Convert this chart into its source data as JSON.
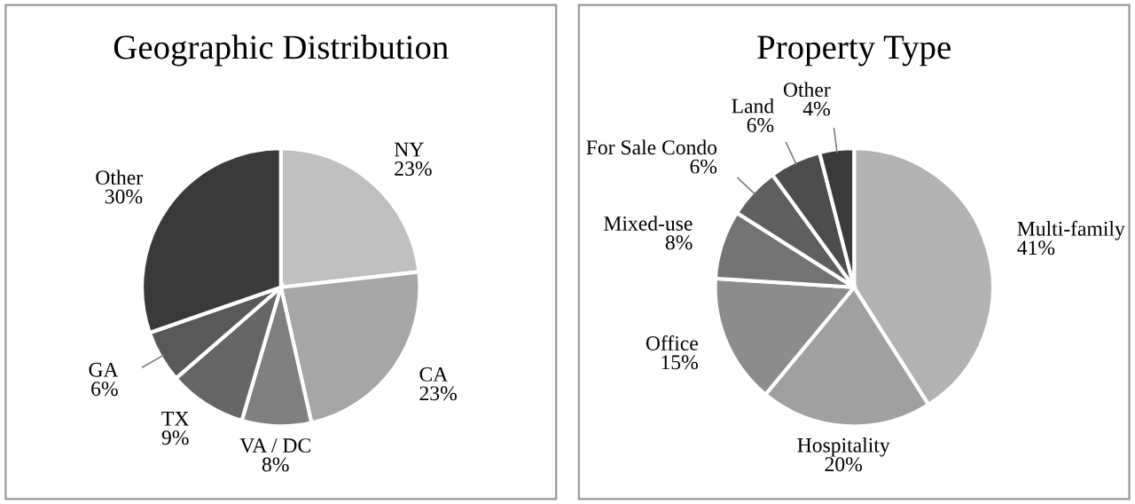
{
  "chart_data": [
    {
      "type": "pie",
      "title": "Geographic Distribution",
      "categories": [
        "NY",
        "CA",
        "VA / DC",
        "TX",
        "GA",
        "Other"
      ],
      "values": [
        23,
        23,
        8,
        9,
        6,
        30
      ],
      "value_labels": [
        "23%",
        "23%",
        "8%",
        "9%",
        "6%",
        "30%"
      ],
      "colors": [
        "#bfbfbf",
        "#a6a6a6",
        "#808080",
        "#666666",
        "#595959",
        "#3a3a3a"
      ]
    },
    {
      "type": "pie",
      "title": "Property Type",
      "categories": [
        "Multi-family",
        "Hospitality",
        "Office",
        "Mixed-use",
        "For Sale Condo",
        "Land",
        "Other"
      ],
      "values": [
        41,
        20,
        15,
        8,
        6,
        6,
        4
      ],
      "value_labels": [
        "41%",
        "20%",
        "15%",
        "8%",
        "6%",
        "6%",
        "4%"
      ],
      "colors": [
        "#b3b3b3",
        "#a0a0a0",
        "#8c8c8c",
        "#737373",
        "#5f5f5f",
        "#4d4d4d",
        "#3a3a3a"
      ]
    }
  ]
}
